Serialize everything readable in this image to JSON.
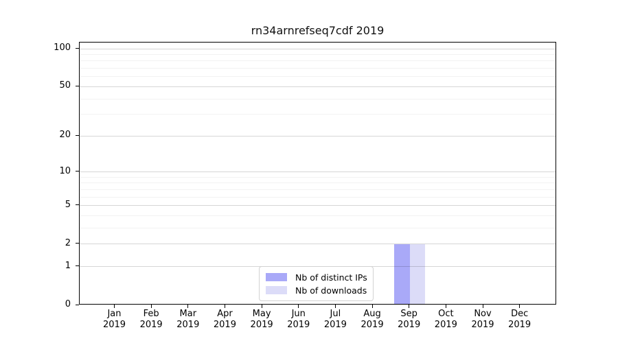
{
  "title": "rn34arnrefseq7cdf 2019",
  "colors": {
    "distinct_ips": "#a9a9f8",
    "downloads": "#dcdcf8",
    "axis": "#000000",
    "legend_border": "#d2d2d2"
  },
  "legend": {
    "position": "lower center",
    "items": [
      {
        "label": "Nb of distinct IPs",
        "color": "#a9a9f8"
      },
      {
        "label": "Nb of downloads",
        "color": "#dcdcf8"
      }
    ]
  },
  "chart_data": {
    "type": "bar",
    "title": "rn34arnrefseq7cdf 2019",
    "categories": [
      "Jan 2019",
      "Feb 2019",
      "Mar 2019",
      "Apr 2019",
      "May 2019",
      "Jun 2019",
      "Jul 2019",
      "Aug 2019",
      "Sep 2019",
      "Oct 2019",
      "Nov 2019",
      "Dec 2019"
    ],
    "series": [
      {
        "name": "Nb of distinct IPs",
        "color": "#a9a9f8",
        "values": [
          0,
          0,
          0,
          0,
          0,
          0,
          0,
          0,
          2,
          0,
          0,
          0
        ]
      },
      {
        "name": "Nb of downloads",
        "color": "#dcdcf8",
        "values": [
          0,
          0,
          0,
          0,
          0,
          0,
          0,
          0,
          2,
          0,
          0,
          0
        ]
      }
    ],
    "xlabel": "",
    "ylabel": "",
    "yscale": "log1p",
    "ylim": [
      0,
      112
    ],
    "y_major_ticks": [
      0,
      1,
      2,
      5,
      10,
      20,
      50,
      100
    ],
    "y_minor_ticks": [
      3,
      4,
      6,
      7,
      8,
      9,
      30,
      40,
      60,
      70,
      80,
      90
    ],
    "grid": true,
    "legend_position": "lower center"
  }
}
